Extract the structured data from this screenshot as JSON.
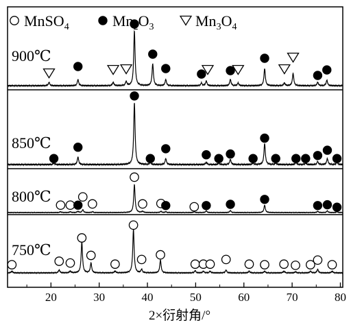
{
  "chart_data": {
    "type": "line",
    "title": "",
    "xlabel": "2×衍射角/°",
    "ylabel": "",
    "xlim": [
      11,
      80.5
    ],
    "x_ticks": [
      "20",
      "30",
      "40",
      "50",
      "60",
      "70",
      "80"
    ],
    "x_tick_values": [
      20,
      30,
      40,
      50,
      60,
      70,
      80
    ],
    "grid": false,
    "legend_position": "top",
    "legend": [
      {
        "marker": "open-circle",
        "label": "MnSO",
        "sub": "4",
        "after": ""
      },
      {
        "marker": "filled-circle",
        "label": "Mn",
        "sub": "2",
        "after": "O",
        "sub2": "3"
      },
      {
        "marker": "open-triangle-down",
        "label": "Mn",
        "sub": "3",
        "after": "O",
        "sub2": "4"
      }
    ],
    "panels": [
      {
        "label": "900℃",
        "peaks": [
          {
            "x": 19.6,
            "h": 0.05
          },
          {
            "x": 25.6,
            "h": 0.09
          },
          {
            "x": 32.9,
            "h": 0.05
          },
          {
            "x": 35.6,
            "h": 0.06
          },
          {
            "x": 37.3,
            "h": 0.8
          },
          {
            "x": 41.1,
            "h": 0.32
          },
          {
            "x": 43.8,
            "h": 0.09
          },
          {
            "x": 51.2,
            "h": 0.04
          },
          {
            "x": 52.2,
            "h": 0.07
          },
          {
            "x": 57.2,
            "h": 0.09
          },
          {
            "x": 58.8,
            "h": 0.04
          },
          {
            "x": 64.3,
            "h": 0.25
          },
          {
            "x": 68.4,
            "h": 0.04
          },
          {
            "x": 70.2,
            "h": 0.18
          },
          {
            "x": 75.3,
            "h": 0.05
          },
          {
            "x": 77.2,
            "h": 0.08
          }
        ],
        "markers": [
          {
            "x": 19.6,
            "type": "open-triangle-down",
            "level": 0.18
          },
          {
            "x": 25.6,
            "type": "filled-circle",
            "level": 0.28
          },
          {
            "x": 32.9,
            "type": "open-triangle-down",
            "level": 0.23
          },
          {
            "x": 35.6,
            "type": "open-triangle-down",
            "level": 0.24
          },
          {
            "x": 37.3,
            "type": "filled-circle",
            "level": 0.9
          },
          {
            "x": 41.1,
            "type": "filled-circle",
            "level": 0.46
          },
          {
            "x": 43.8,
            "type": "filled-circle",
            "level": 0.25
          },
          {
            "x": 51.2,
            "type": "filled-circle",
            "level": 0.17
          },
          {
            "x": 52.5,
            "type": "open-triangle-down",
            "level": 0.23
          },
          {
            "x": 57.2,
            "type": "filled-circle",
            "level": 0.22
          },
          {
            "x": 58.8,
            "type": "open-triangle-down",
            "level": 0.23
          },
          {
            "x": 64.3,
            "type": "filled-circle",
            "level": 0.4
          },
          {
            "x": 68.4,
            "type": "open-triangle-down",
            "level": 0.24
          },
          {
            "x": 70.2,
            "type": "open-triangle-down",
            "level": 0.41
          },
          {
            "x": 75.3,
            "type": "filled-circle",
            "level": 0.15
          },
          {
            "x": 77.2,
            "type": "filled-circle",
            "level": 0.23
          }
        ]
      },
      {
        "label": "850℃",
        "peaks": [
          {
            "x": 20.6,
            "h": 0.02
          },
          {
            "x": 25.6,
            "h": 0.1
          },
          {
            "x": 37.3,
            "h": 0.82
          },
          {
            "x": 40.6,
            "h": 0.03
          },
          {
            "x": 43.8,
            "h": 0.08
          },
          {
            "x": 52.2,
            "h": 0.03
          },
          {
            "x": 54.8,
            "h": 0.02
          },
          {
            "x": 57.2,
            "h": 0.07
          },
          {
            "x": 61.9,
            "h": 0.02
          },
          {
            "x": 64.3,
            "h": 0.28
          },
          {
            "x": 66.6,
            "h": 0.02
          },
          {
            "x": 70.8,
            "h": 0.03
          },
          {
            "x": 72.8,
            "h": 0.02
          },
          {
            "x": 75.3,
            "h": 0.04
          },
          {
            "x": 77.3,
            "h": 0.08
          },
          {
            "x": 79.3,
            "h": 0.03
          }
        ],
        "markers": [
          {
            "x": 20.6,
            "type": "filled-circle",
            "level": 0.08
          },
          {
            "x": 25.6,
            "type": "filled-circle",
            "level": 0.23
          },
          {
            "x": 37.3,
            "type": "filled-circle",
            "level": 0.91
          },
          {
            "x": 40.6,
            "type": "filled-circle",
            "level": 0.08
          },
          {
            "x": 43.8,
            "type": "filled-circle",
            "level": 0.21
          },
          {
            "x": 52.2,
            "type": "filled-circle",
            "level": 0.13
          },
          {
            "x": 54.8,
            "type": "filled-circle",
            "level": 0.08
          },
          {
            "x": 57.2,
            "type": "filled-circle",
            "level": 0.14
          },
          {
            "x": 61.9,
            "type": "filled-circle",
            "level": 0.08
          },
          {
            "x": 64.3,
            "type": "filled-circle",
            "level": 0.35
          },
          {
            "x": 66.6,
            "type": "filled-circle",
            "level": 0.08
          },
          {
            "x": 70.8,
            "type": "filled-circle",
            "level": 0.08
          },
          {
            "x": 72.8,
            "type": "filled-circle",
            "level": 0.08
          },
          {
            "x": 75.3,
            "type": "filled-circle",
            "level": 0.12
          },
          {
            "x": 77.3,
            "type": "filled-circle",
            "level": 0.19
          },
          {
            "x": 79.3,
            "type": "filled-circle",
            "level": 0.08
          }
        ]
      },
      {
        "label": "800℃",
        "peaks": [
          {
            "x": 22.0,
            "h": 0.02
          },
          {
            "x": 24.0,
            "h": 0.02
          },
          {
            "x": 25.6,
            "h": 0.03
          },
          {
            "x": 26.6,
            "h": 0.07
          },
          {
            "x": 28.6,
            "h": 0.02
          },
          {
            "x": 37.3,
            "h": 0.68
          },
          {
            "x": 39.0,
            "h": 0.03
          },
          {
            "x": 42.8,
            "h": 0.03
          },
          {
            "x": 43.8,
            "h": 0.02
          },
          {
            "x": 49.7,
            "h": 0.02
          },
          {
            "x": 52.2,
            "h": 0.04
          },
          {
            "x": 57.2,
            "h": 0.05
          },
          {
            "x": 64.3,
            "h": 0.18
          },
          {
            "x": 75.3,
            "h": 0.03
          },
          {
            "x": 77.3,
            "h": 0.04
          },
          {
            "x": 79.3,
            "h": 0.02
          }
        ],
        "markers": [
          {
            "x": 22.0,
            "type": "open-circle",
            "level": 0.18
          },
          {
            "x": 24.0,
            "type": "open-circle",
            "level": 0.18
          },
          {
            "x": 25.6,
            "type": "filled-circle",
            "level": 0.18
          },
          {
            "x": 26.6,
            "type": "open-circle",
            "level": 0.38
          },
          {
            "x": 28.6,
            "type": "open-circle",
            "level": 0.21
          },
          {
            "x": 37.3,
            "type": "open-circle",
            "level": 0.86
          },
          {
            "x": 39.0,
            "type": "open-circle",
            "level": 0.21
          },
          {
            "x": 42.8,
            "type": "open-circle",
            "level": 0.22
          },
          {
            "x": 43.8,
            "type": "filled-circle",
            "level": 0.17
          },
          {
            "x": 49.7,
            "type": "open-circle",
            "level": 0.14
          },
          {
            "x": 52.2,
            "type": "filled-circle",
            "level": 0.17
          },
          {
            "x": 57.2,
            "type": "filled-circle",
            "level": 0.2
          },
          {
            "x": 64.3,
            "type": "filled-circle",
            "level": 0.32
          },
          {
            "x": 75.3,
            "type": "filled-circle",
            "level": 0.17
          },
          {
            "x": 77.3,
            "type": "filled-circle",
            "level": 0.19
          },
          {
            "x": 79.3,
            "type": "filled-circle",
            "level": 0.13
          }
        ]
      },
      {
        "label": "750℃",
        "peaks": [
          {
            "x": 11.9,
            "h": 0.03
          },
          {
            "x": 21.7,
            "h": 0.05
          },
          {
            "x": 24.0,
            "h": 0.03
          },
          {
            "x": 26.4,
            "h": 0.53
          },
          {
            "x": 28.3,
            "h": 0.17
          },
          {
            "x": 33.3,
            "h": 0.03
          },
          {
            "x": 37.1,
            "h": 0.75
          },
          {
            "x": 38.8,
            "h": 0.06
          },
          {
            "x": 42.7,
            "h": 0.22
          },
          {
            "x": 49.9,
            "h": 0.04
          },
          {
            "x": 51.6,
            "h": 0.03
          },
          {
            "x": 53.0,
            "h": 0.03
          },
          {
            "x": 56.3,
            "h": 0.05
          },
          {
            "x": 61.1,
            "h": 0.03
          },
          {
            "x": 64.3,
            "h": 0.03
          },
          {
            "x": 68.3,
            "h": 0.03
          },
          {
            "x": 70.7,
            "h": 0.02
          },
          {
            "x": 73.8,
            "h": 0.03
          },
          {
            "x": 75.3,
            "h": 0.06
          },
          {
            "x": 78.3,
            "h": 0.03
          }
        ],
        "markers": [
          {
            "x": 11.9,
            "type": "open-circle",
            "level": 0.14
          },
          {
            "x": 21.7,
            "type": "open-circle",
            "level": 0.2
          },
          {
            "x": 24.0,
            "type": "open-circle",
            "level": 0.17
          },
          {
            "x": 26.4,
            "type": "open-circle",
            "level": 0.6
          },
          {
            "x": 28.3,
            "type": "open-circle",
            "level": 0.3
          },
          {
            "x": 33.3,
            "type": "open-circle",
            "level": 0.15
          },
          {
            "x": 37.1,
            "type": "open-circle",
            "level": 0.82
          },
          {
            "x": 38.8,
            "type": "open-circle",
            "level": 0.23
          },
          {
            "x": 42.7,
            "type": "open-circle",
            "level": 0.31
          },
          {
            "x": 49.9,
            "type": "open-circle",
            "level": 0.15
          },
          {
            "x": 51.6,
            "type": "open-circle",
            "level": 0.15
          },
          {
            "x": 53.0,
            "type": "open-circle",
            "level": 0.15
          },
          {
            "x": 56.3,
            "type": "open-circle",
            "level": 0.23
          },
          {
            "x": 61.1,
            "type": "open-circle",
            "level": 0.15
          },
          {
            "x": 64.3,
            "type": "open-circle",
            "level": 0.14
          },
          {
            "x": 68.3,
            "type": "open-circle",
            "level": 0.15
          },
          {
            "x": 70.7,
            "type": "open-circle",
            "level": 0.13
          },
          {
            "x": 73.8,
            "type": "open-circle",
            "level": 0.14
          },
          {
            "x": 75.3,
            "type": "open-circle",
            "level": 0.22
          },
          {
            "x": 78.3,
            "type": "open-circle",
            "level": 0.14
          }
        ]
      }
    ]
  }
}
